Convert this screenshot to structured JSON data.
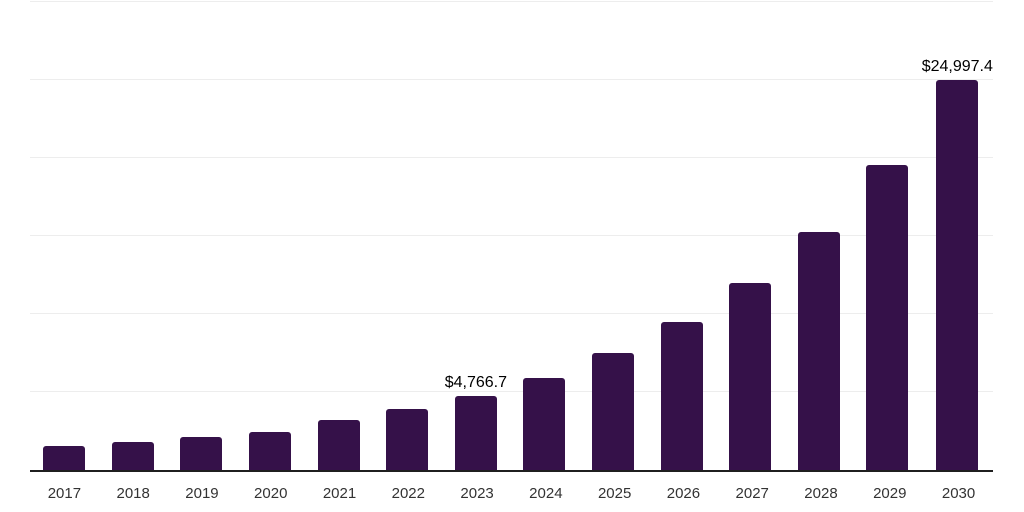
{
  "chart_data": {
    "type": "bar",
    "title": "",
    "xlabel": "",
    "ylabel": "",
    "categories": [
      "2017",
      "2018",
      "2019",
      "2020",
      "2021",
      "2022",
      "2023",
      "2024",
      "2025",
      "2026",
      "2027",
      "2028",
      "2029",
      "2030"
    ],
    "values": [
      1550,
      1780,
      2130,
      2450,
      3200,
      3910,
      4766.7,
      5920,
      7480,
      9510,
      12010,
      15280,
      19550,
      24997.4
    ],
    "data_labels": [
      "",
      "",
      "",
      "",
      "",
      "",
      "$4,766.7",
      "",
      "",
      "",
      "",
      "",
      "",
      "$24,997.4"
    ],
    "ylim": [
      0,
      30000
    ],
    "gridline_step": 5000,
    "grid": "horizontal",
    "legend": "none",
    "colors": {
      "bar": "#351149",
      "gridline": "#ededed",
      "axis_line": "#1f1f1f",
      "tick_label": "#333333",
      "data_label": "#000000",
      "background": "#ffffff"
    }
  }
}
